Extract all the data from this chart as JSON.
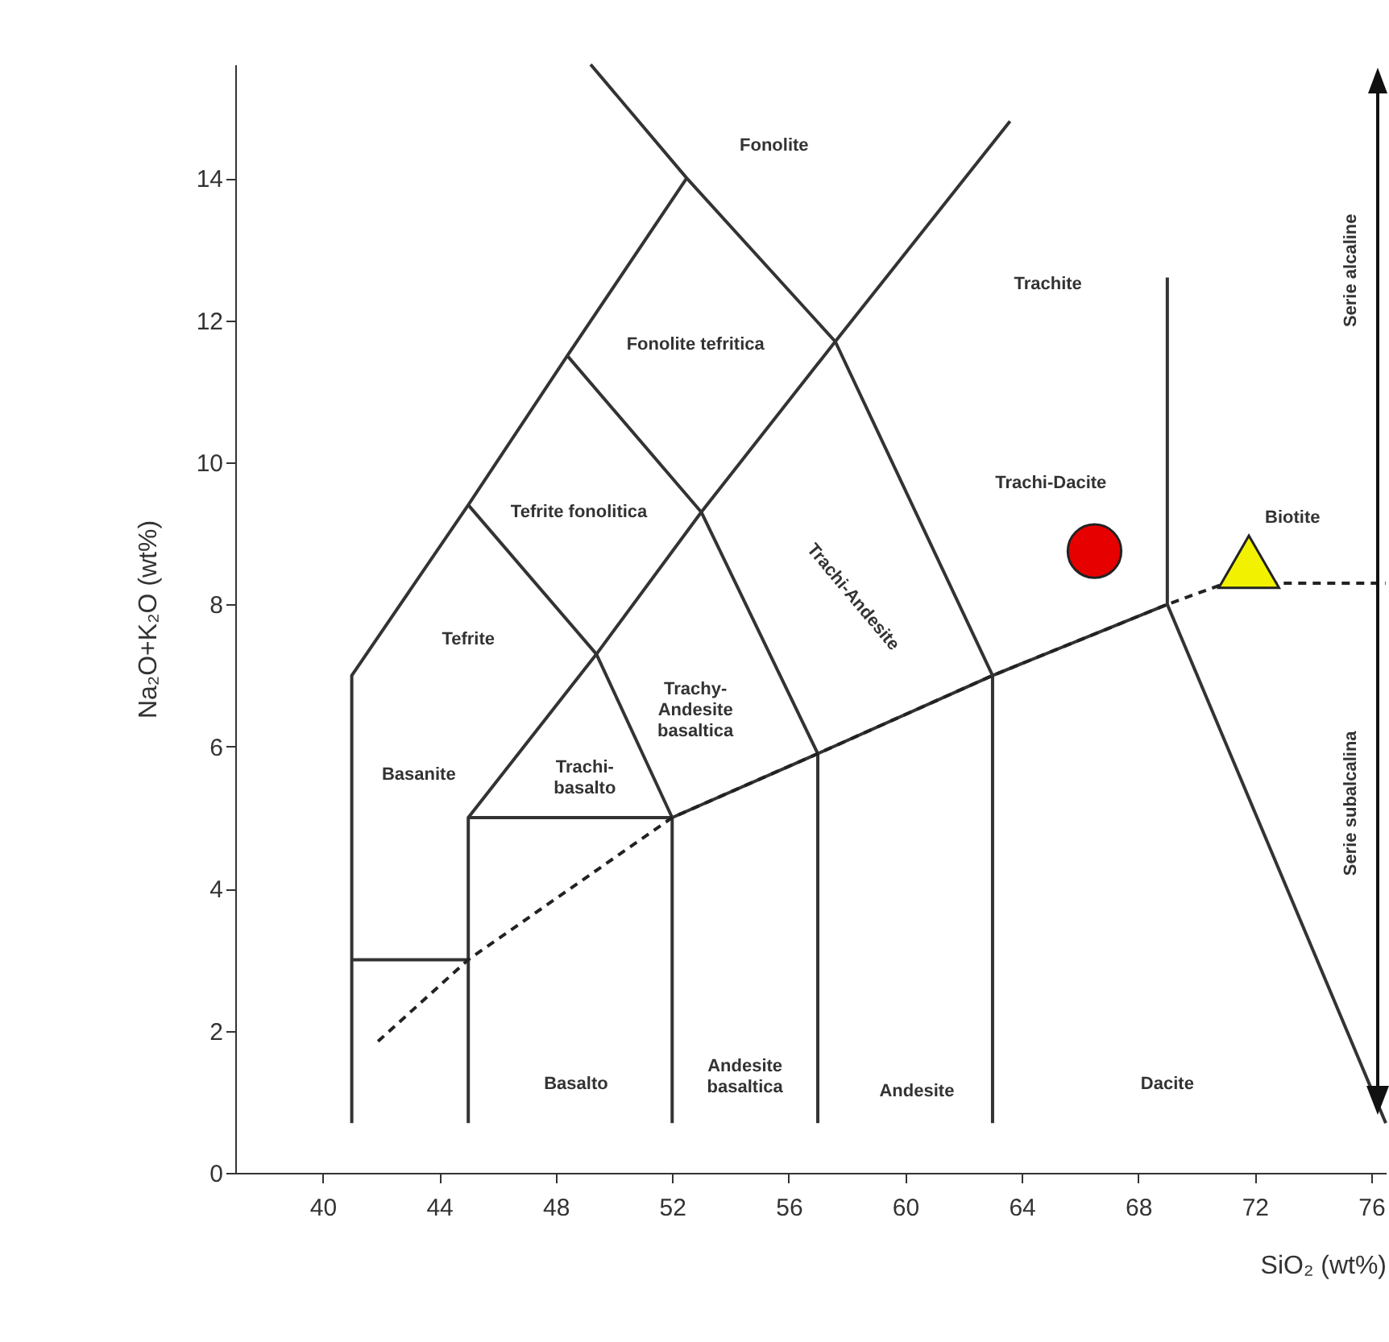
{
  "chart_data": {
    "type": "scatter",
    "xlabel": "SiO₂ (wt%)",
    "ylabel": "Na₂O+K₂O (wt%)",
    "xlim": [
      37,
      76.5
    ],
    "ylim": [
      0,
      15.6
    ],
    "xticks": [
      40,
      44,
      48,
      52,
      56,
      60,
      64,
      68,
      72,
      76
    ],
    "yticks": [
      0,
      2,
      4,
      6,
      8,
      10,
      12,
      14
    ],
    "grid": false,
    "series": [
      {
        "type": "line",
        "color": "#333333",
        "x": [
          41,
          41,
          45,
          48.4,
          52.5
        ],
        "values": [
          0.7,
          7,
          9.4,
          11.5,
          14
        ]
      },
      {
        "type": "line",
        "color": "#333333",
        "x": [
          49.2,
          52.5,
          57.6,
          63,
          63
        ],
        "values": [
          15.6,
          14,
          11.7,
          7,
          0.7
        ]
      },
      {
        "type": "line",
        "color": "#333333",
        "x": [
          48.4,
          53,
          57,
          57
        ],
        "values": [
          11.5,
          9.3,
          5.9,
          0.7
        ]
      },
      {
        "type": "line",
        "color": "#333333",
        "x": [
          45,
          49.4,
          52,
          52
        ],
        "values": [
          9.4,
          7.3,
          5,
          0.7
        ]
      },
      {
        "type": "line",
        "color": "#333333",
        "x": [
          45,
          49.4,
          53,
          57.6,
          63.6
        ],
        "values": [
          5,
          7.3,
          9.3,
          11.7,
          14.8
        ]
      },
      {
        "type": "line",
        "color": "#333333",
        "x": [
          45,
          45,
          52,
          57,
          63,
          69,
          69
        ],
        "values": [
          0.7,
          5,
          5,
          5.9,
          7,
          8,
          12.6
        ]
      },
      {
        "type": "line",
        "color": "#333333",
        "x": [
          41,
          45
        ],
        "values": [
          3,
          3
        ]
      },
      {
        "type": "line",
        "color": "#333333",
        "x": [
          69,
          76.5
        ],
        "values": [
          8,
          0.7
        ]
      },
      {
        "type": "line",
        "color": "#222222",
        "line_style": "dashed",
        "x": [
          41.9,
          45,
          52,
          57,
          63,
          69,
          71,
          76.5
        ],
        "values": [
          1.85,
          3,
          5,
          5.9,
          7,
          8,
          8.3,
          8.3
        ]
      },
      {
        "color": "#e60000",
        "marker": "circle",
        "x": [
          66.5
        ],
        "values": [
          8.75
        ]
      },
      {
        "name": "Biotite",
        "color": "#f2f200",
        "marker": "triangle",
        "x": [
          71.8
        ],
        "values": [
          8.6
        ]
      }
    ],
    "annotations": [
      "Fonolite",
      "Fonolite tefritica",
      "Tefrite fonolitica",
      "Tefrite",
      "Trachy-\nAndesite\nbasaltica",
      "Trachi-Andesite",
      "Trachite",
      "Trachi-Dacite",
      "Basanite",
      "Trachi-\nbasalto",
      "Basalto",
      "Andesite\nbasaltica",
      "Andesite",
      "Dacite",
      "Serie alcaline",
      "Serie subalcalina"
    ]
  }
}
